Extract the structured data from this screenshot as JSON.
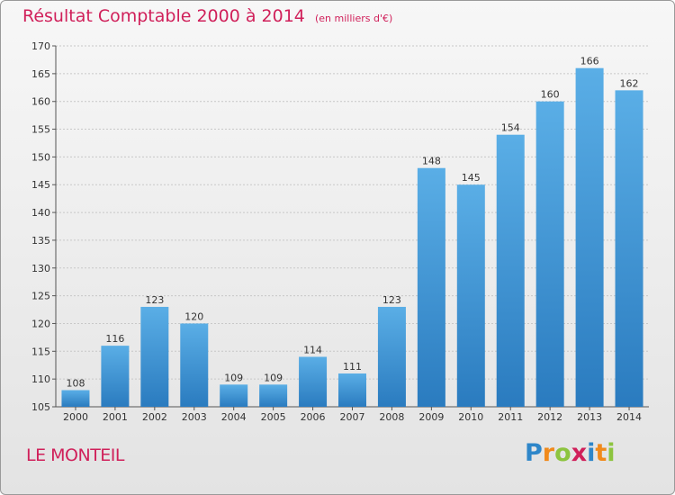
{
  "header": {
    "title": "Résultat Comptable 2000 à 2014",
    "unit": "(en milliers d'€)"
  },
  "commune": "LE MONTEIL",
  "brand": {
    "name": "Proxiti",
    "letters": [
      {
        "char": "P",
        "color": "#2e86c9"
      },
      {
        "char": "r",
        "color": "#f08a1c"
      },
      {
        "char": "o",
        "color": "#8dc43f"
      },
      {
        "char": "x",
        "color": "#d0205a"
      },
      {
        "char": "i",
        "color": "#2e86c9"
      },
      {
        "char": "t",
        "color": "#f08a1c"
      },
      {
        "char": "i",
        "color": "#8dc43f"
      }
    ]
  },
  "colors": {
    "bar_top": "#5aaee6",
    "bar_bottom": "#2a7bbf",
    "accent": "#d0205a"
  },
  "chart_data": {
    "type": "bar",
    "title": "Résultat Comptable 2000 à 2014",
    "categories": [
      "2000",
      "2001",
      "2002",
      "2003",
      "2004",
      "2005",
      "2006",
      "2007",
      "2008",
      "2009",
      "2010",
      "2011",
      "2012",
      "2013",
      "2014"
    ],
    "values": [
      108,
      116,
      123,
      120,
      109,
      109,
      114,
      111,
      123,
      148,
      145,
      154,
      160,
      166,
      162
    ],
    "ylim": [
      105,
      170
    ],
    "yticks": [
      105,
      110,
      115,
      120,
      125,
      130,
      135,
      140,
      145,
      150,
      155,
      160,
      165,
      170
    ],
    "grid": true,
    "data_labels": true
  }
}
